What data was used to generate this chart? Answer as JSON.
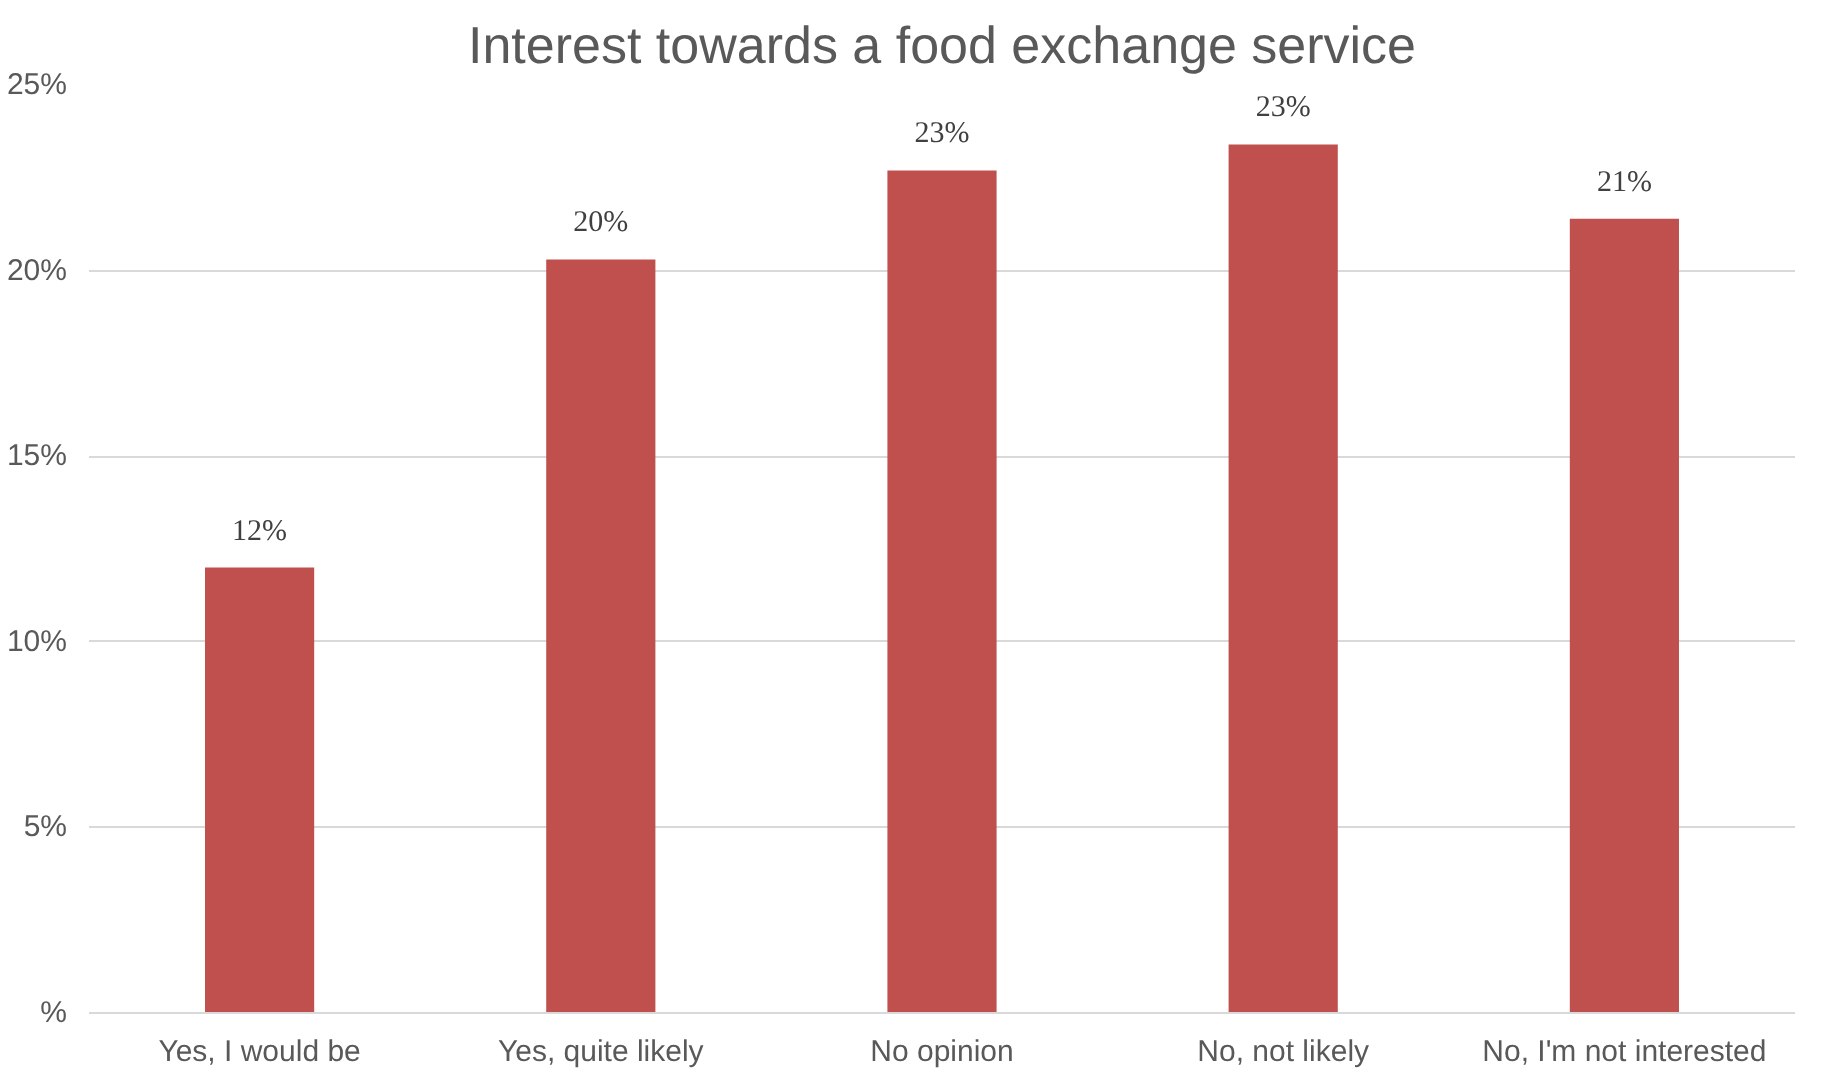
{
  "chart_data": {
    "type": "bar",
    "title": "Interest towards a food exchange service",
    "categories": [
      "Yes, I would be",
      "Yes, quite likely",
      "No opinion",
      "No, not likely",
      "No, I'm not interested"
    ],
    "values": [
      12.0,
      20.3,
      22.7,
      23.4,
      21.4
    ],
    "value_labels": [
      "12%",
      "20%",
      "23%",
      "23%",
      "21%"
    ],
    "color": "#c0504d",
    "ylim": [
      0,
      25
    ],
    "yticks": [
      {
        "value": 0,
        "label": "%"
      },
      {
        "value": 5,
        "label": "5%"
      },
      {
        "value": 10,
        "label": "10%"
      },
      {
        "value": 15,
        "label": "15%"
      },
      {
        "value": 20,
        "label": "20%"
      },
      {
        "value": 25,
        "label": "25%"
      }
    ],
    "grid": "y"
  }
}
